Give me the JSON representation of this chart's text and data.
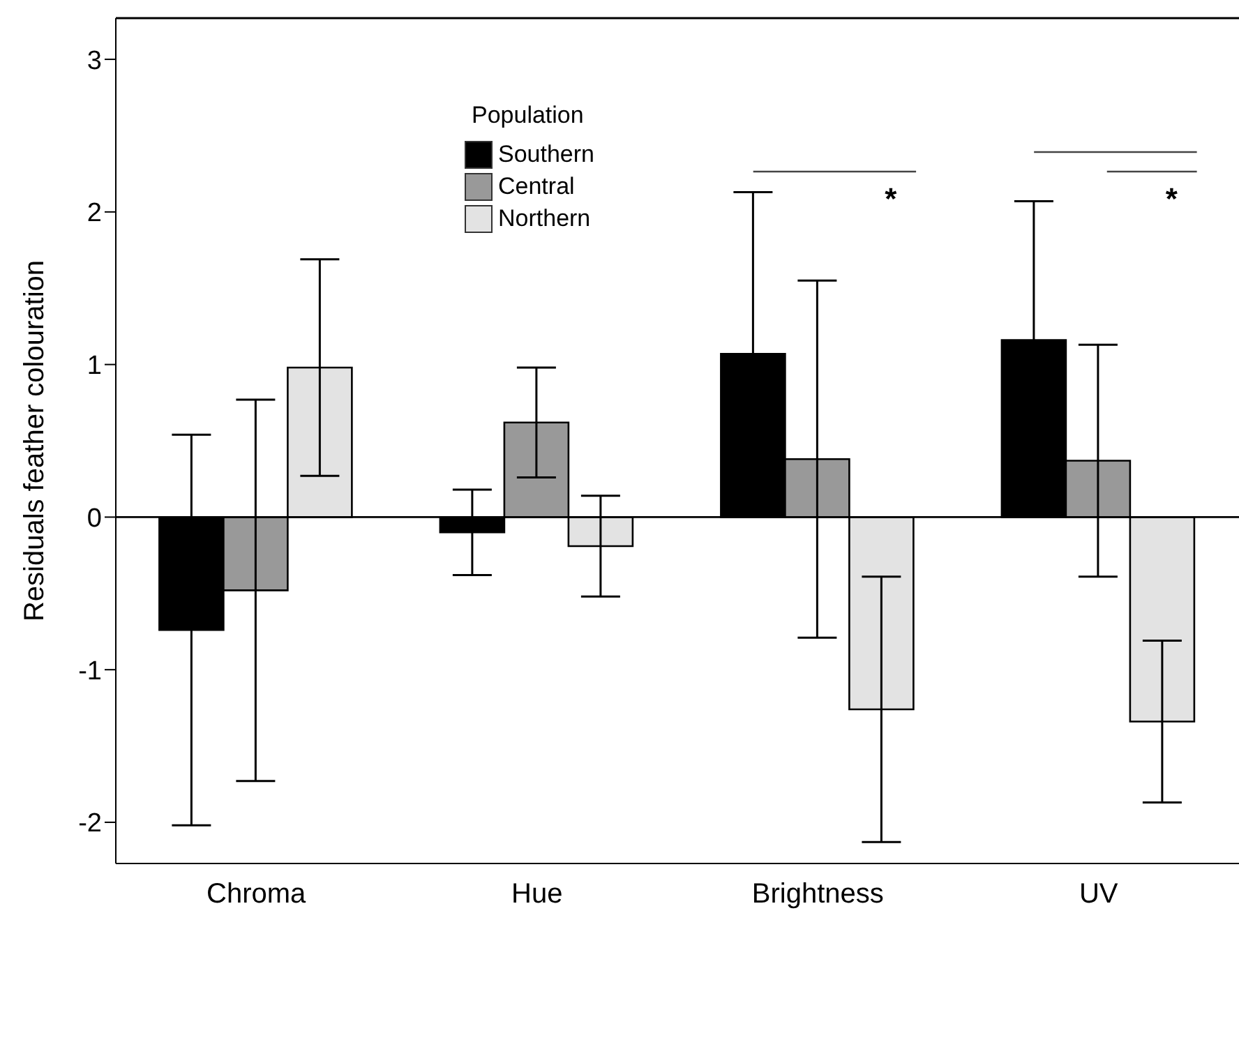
{
  "chart_data": {
    "type": "bar",
    "ylabel": "Residuals feather colouration",
    "legend_title": "Population",
    "categories": [
      "Chroma",
      "Hue",
      "Brightness",
      "UV"
    ],
    "series": [
      {
        "name": "Southern",
        "color": "#000000",
        "values": [
          -0.74,
          -0.1,
          1.07,
          1.16
        ],
        "errors": [
          1.28,
          0.28,
          1.06,
          0.91
        ]
      },
      {
        "name": "Central",
        "color": "#999999",
        "values": [
          -0.48,
          0.62,
          0.38,
          0.37
        ],
        "errors": [
          1.25,
          0.36,
          1.17,
          0.76
        ]
      },
      {
        "name": "Northern",
        "color": "#e3e3e3",
        "values": [
          0.98,
          -0.19,
          -1.26,
          -1.34
        ],
        "errors": [
          0.71,
          0.33,
          0.87,
          0.53
        ]
      }
    ],
    "ylim": [
      -2.27,
      3.27
    ],
    "yticks": [
      -2,
      -1,
      0,
      1,
      2,
      3
    ],
    "ref_lines": [
      {
        "axis": "y",
        "value": 0,
        "color": "#000000"
      }
    ],
    "annotations": [
      "*",
      "*"
    ],
    "legend": "top",
    "grid": false
  }
}
